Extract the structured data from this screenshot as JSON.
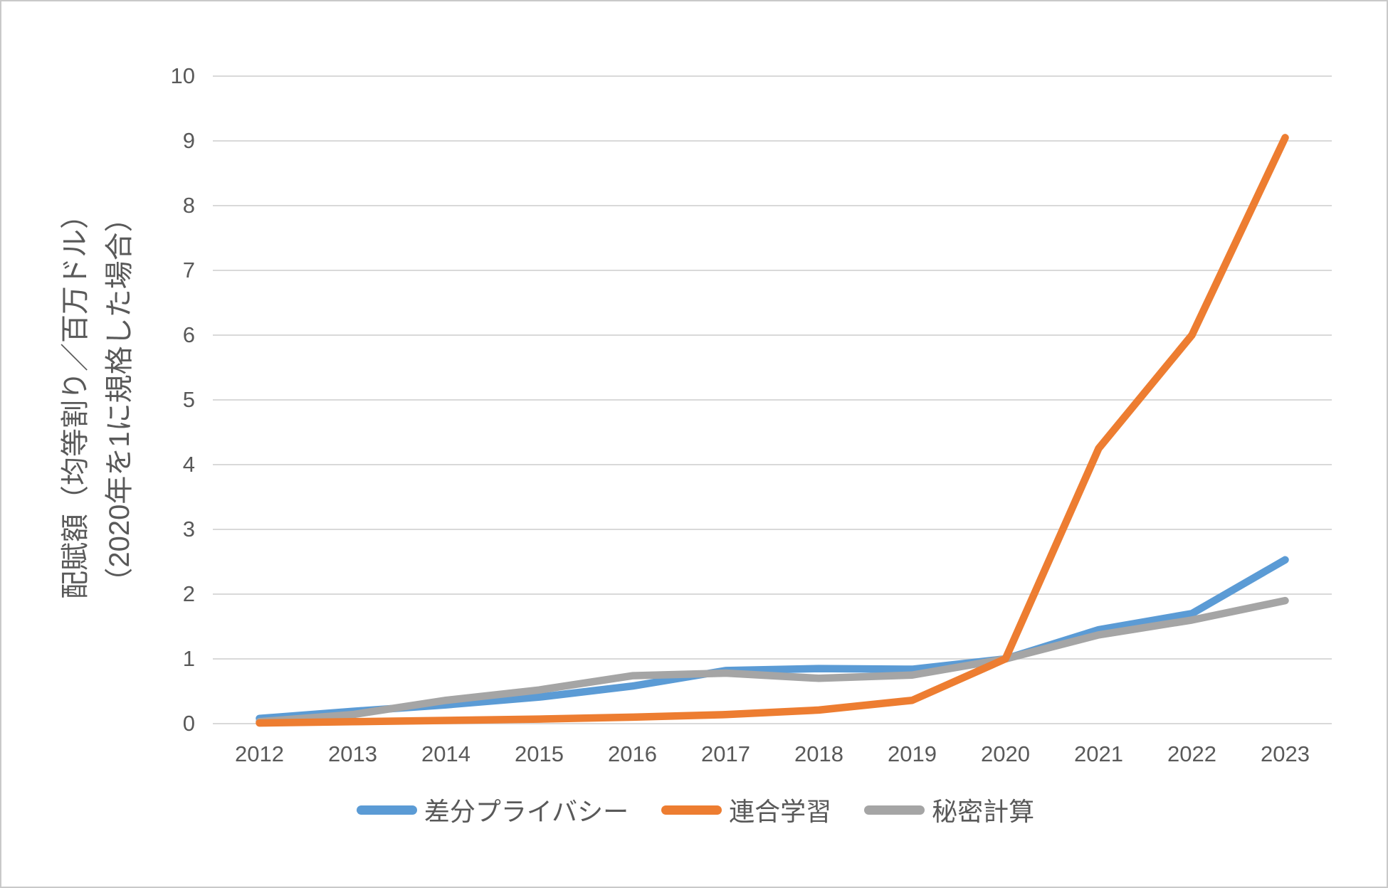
{
  "chart_data": {
    "type": "line",
    "title": "",
    "categories": [
      "2012",
      "2013",
      "2014",
      "2015",
      "2016",
      "2017",
      "2018",
      "2019",
      "2020",
      "2021",
      "2022",
      "2023"
    ],
    "series": [
      {
        "name": "差分プライバシー",
        "color": "#5B9BD5",
        "values": [
          0.08,
          0.19,
          0.29,
          0.41,
          0.58,
          0.82,
          0.85,
          0.84,
          1.0,
          1.45,
          1.7,
          2.53
        ]
      },
      {
        "name": "連合学習",
        "color": "#ED7D31",
        "values": [
          0.01,
          0.03,
          0.05,
          0.07,
          0.1,
          0.14,
          0.21,
          0.36,
          1.0,
          4.25,
          6.0,
          9.05
        ]
      },
      {
        "name": "秘密計算",
        "color": "#A5A5A5",
        "values": [
          0.03,
          0.14,
          0.36,
          0.52,
          0.74,
          0.78,
          0.7,
          0.75,
          1.0,
          1.37,
          1.6,
          1.9
        ]
      }
    ],
    "xlabel": "",
    "ylabel_line1": "配賦額（均等割り／百万ドル）",
    "ylabel_line2": "（2020年を1に規格した場合）",
    "ylim": [
      0,
      10
    ],
    "yticks": [
      0,
      1,
      2,
      3,
      4,
      5,
      6,
      7,
      8,
      9,
      10
    ],
    "grid": "horizontal",
    "gridline_color": "#D9D9D9",
    "text_color": "#595959",
    "legend_position": "bottom"
  }
}
